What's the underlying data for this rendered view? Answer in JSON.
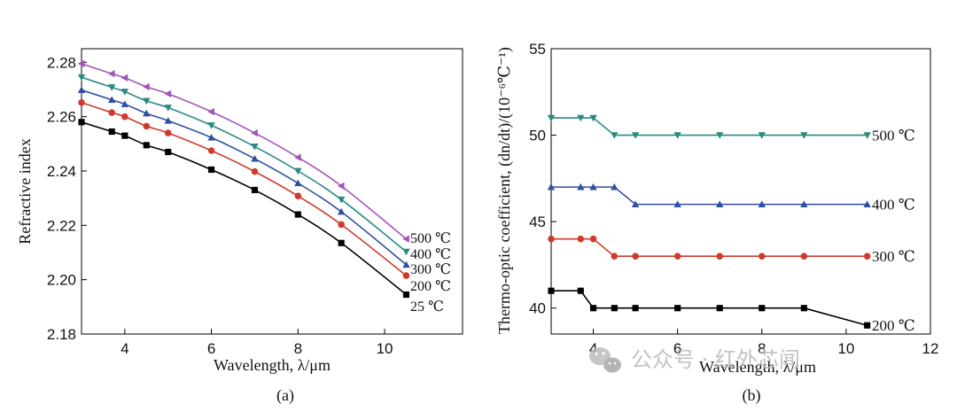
{
  "chart_data": [
    {
      "type": "line",
      "panel_label": "(a)",
      "xlabel": "Wavelength, λ/μm",
      "ylabel": "Refractive index",
      "xlim": [
        3,
        11.8
      ],
      "ylim": [
        2.18,
        2.285
      ],
      "xticks": [
        4,
        6,
        8,
        10
      ],
      "yticks": [
        2.18,
        2.2,
        2.22,
        2.24,
        2.26,
        2.28
      ],
      "ytick_labels": [
        "2.18",
        "2.20",
        "2.22",
        "2.24",
        "2.26",
        "2.28"
      ],
      "x": [
        3.0,
        3.7,
        4.0,
        4.5,
        5.0,
        6.0,
        7.0,
        8.0,
        9.0,
        10.5
      ],
      "series": [
        {
          "name": "25 ℃",
          "color": "#000000",
          "marker": "square",
          "values": [
            2.258,
            2.2545,
            2.253,
            2.2495,
            2.247,
            2.2405,
            2.233,
            2.224,
            2.2135,
            2.1945
          ]
        },
        {
          "name": "200 ℃",
          "color": "#d03a2e",
          "marker": "circle",
          "values": [
            2.2652,
            2.2615,
            2.26,
            2.2565,
            2.254,
            2.2475,
            2.2398,
            2.2308,
            2.2203,
            2.2015
          ]
        },
        {
          "name": "300 ℃",
          "color": "#2f4f9f",
          "marker": "triangle-up",
          "values": [
            2.2698,
            2.2662,
            2.2646,
            2.2612,
            2.2585,
            2.2523,
            2.2445,
            2.2355,
            2.225,
            2.2055
          ]
        },
        {
          "name": "400 ℃",
          "color": "#2a8a80",
          "marker": "triangle-down",
          "values": [
            2.2745,
            2.2708,
            2.2692,
            2.2658,
            2.2633,
            2.2568,
            2.249,
            2.24,
            2.2295,
            2.2103
          ]
        },
        {
          "name": "500 ℃",
          "color": "#a354b8",
          "marker": "triangle-left",
          "values": [
            2.2795,
            2.2758,
            2.2743,
            2.271,
            2.2684,
            2.2618,
            2.254,
            2.245,
            2.2345,
            2.215
          ]
        }
      ]
    },
    {
      "type": "line",
      "panel_label": "(b)",
      "xlabel": "Wavelength, λ/μm",
      "ylabel": "Thermo-optic coefficient, (dn/dt)/(10⁻⁶℃⁻¹)",
      "xlim": [
        3,
        12
      ],
      "ylim": [
        38.5,
        55
      ],
      "xticks": [
        4,
        6,
        8,
        10,
        12
      ],
      "yticks": [
        40,
        45,
        50,
        55
      ],
      "x": [
        3.0,
        3.7,
        4.0,
        4.5,
        5.0,
        6.0,
        7.0,
        8.0,
        9.0,
        10.5
      ],
      "series": [
        {
          "name": "200 ℃",
          "color": "#000000",
          "marker": "square",
          "values": [
            41,
            41,
            40,
            40,
            40,
            40,
            40,
            40,
            40,
            39
          ]
        },
        {
          "name": "300 ℃",
          "color": "#d03a2e",
          "marker": "circle",
          "values": [
            44,
            44,
            44,
            43,
            43,
            43,
            43,
            43,
            43,
            43
          ]
        },
        {
          "name": "400 ℃",
          "color": "#2f4f9f",
          "marker": "triangle-up",
          "values": [
            47,
            47,
            47,
            47,
            46,
            46,
            46,
            46,
            46,
            46
          ]
        },
        {
          "name": "500 ℃",
          "color": "#2a8a80",
          "marker": "triangle-down",
          "values": [
            51,
            51,
            51,
            50,
            50,
            50,
            50,
            50,
            50,
            50
          ]
        }
      ]
    }
  ],
  "watermark": {
    "icon": "wechat-icon",
    "text": "公众号 · 红外芯闻"
  }
}
